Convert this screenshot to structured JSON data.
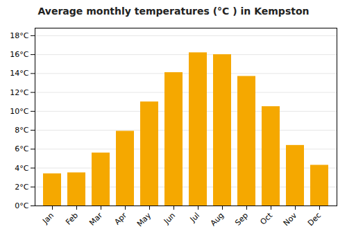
{
  "chart_data": {
    "type": "bar",
    "title": "Average monthly temperatures (°C ) in Kempston",
    "categories": [
      "Jan",
      "Feb",
      "Mar",
      "Apr",
      "May",
      "Jun",
      "Jul",
      "Aug",
      "Sep",
      "Oct",
      "Nov",
      "Dec"
    ],
    "values": [
      3.4,
      3.5,
      5.6,
      7.9,
      11.0,
      14.1,
      16.2,
      16.0,
      13.7,
      10.5,
      6.4,
      4.3
    ],
    "color": "#F5A800",
    "ylim": [
      0,
      18.8
    ],
    "yticks": [
      {
        "value": 0,
        "label": "0°C"
      },
      {
        "value": 2,
        "label": "2°C"
      },
      {
        "value": 4,
        "label": "4°C"
      },
      {
        "value": 6,
        "label": "6°C"
      },
      {
        "value": 8,
        "label": "8°C"
      },
      {
        "value": 10,
        "label": "10°C"
      },
      {
        "value": 12,
        "label": "12°C"
      },
      {
        "value": 14,
        "label": "14°C"
      },
      {
        "value": 16,
        "label": "16°C"
      },
      {
        "value": 18,
        "label": "18°C"
      }
    ],
    "grid": true
  }
}
